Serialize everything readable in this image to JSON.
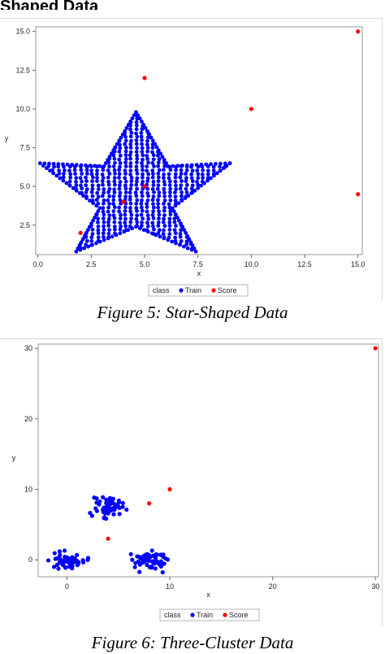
{
  "page": {
    "top_heading": "Shaped Data"
  },
  "figures": [
    {
      "caption": "Figure 5: Star-Shaped Data",
      "legend": {
        "title": "class",
        "entries": [
          {
            "label": "Train",
            "color": "#0000ff"
          },
          {
            "label": "Score",
            "color": "#ff0000"
          }
        ]
      }
    },
    {
      "caption": "Figure 6: Three-Cluster Data",
      "legend": {
        "title": "class",
        "entries": [
          {
            "label": "Train",
            "color": "#0000ff"
          },
          {
            "label": "Score",
            "color": "#ff0000"
          }
        ]
      }
    }
  ],
  "chart_data": [
    {
      "type": "scatter",
      "xlabel": "x",
      "ylabel": "y",
      "xlim": [
        -0.1,
        15.2
      ],
      "ylim": [
        0.6,
        15.3
      ],
      "xticks": [
        "0.0",
        "2.5",
        "5.0",
        "7.5",
        "10.0",
        "12.5",
        "15.0"
      ],
      "yticks": [
        "2.5",
        "5.0",
        "7.5",
        "10.0",
        "12.5",
        "15.0"
      ],
      "grid": false,
      "legend_position": "bottom",
      "series": [
        {
          "name": "Train",
          "color": "#0000ff",
          "shape": "star",
          "star": {
            "top": [
              4.6,
              9.8
            ],
            "left": [
              0.1,
              6.5
            ],
            "right": [
              9.0,
              6.5
            ],
            "bottom_left": [
              1.8,
              0.8
            ],
            "bottom_right": [
              7.4,
              0.8
            ],
            "inner_left": [
              3.1,
              6.3
            ],
            "inner_right": [
              6.1,
              6.3
            ],
            "inner_bottom_left": [
              2.9,
              3.6
            ],
            "inner_bottom_right": [
              6.3,
              3.6
            ],
            "inner_bottom": [
              4.6,
              2.4
            ]
          }
        },
        {
          "name": "Score",
          "color": "#ff0000",
          "points": [
            [
              15.0,
              15.0
            ],
            [
              5.0,
              12.0
            ],
            [
              10.0,
              10.0
            ],
            [
              15.0,
              4.5
            ],
            [
              5.0,
              5.0
            ],
            [
              4.0,
              4.0
            ],
            [
              2.0,
              2.0
            ]
          ]
        }
      ]
    },
    {
      "type": "scatter",
      "xlabel": "x",
      "ylabel": "y",
      "xlim": [
        -2.8,
        30.3
      ],
      "ylim": [
        -2.4,
        30.6
      ],
      "xticks": [
        "0",
        "10",
        "20",
        "30"
      ],
      "yticks": [
        "0",
        "10",
        "20",
        "30"
      ],
      "grid": false,
      "legend_position": "bottom",
      "series": [
        {
          "name": "Train",
          "color": "#0000ff",
          "clusters": [
            {
              "center": [
                0.0,
                0.0
              ],
              "spread": [
                1.3,
                0.9
              ],
              "count": 55
            },
            {
              "center": [
                4.0,
                7.5
              ],
              "spread": [
                1.2,
                1.3
              ],
              "count": 55
            },
            {
              "center": [
                8.0,
                0.0
              ],
              "spread": [
                1.4,
                1.1
              ],
              "count": 60
            }
          ]
        },
        {
          "name": "Score",
          "color": "#ff0000",
          "points": [
            [
              30.0,
              30.0
            ],
            [
              10.0,
              10.0
            ],
            [
              8.0,
              8.0
            ],
            [
              4.0,
              3.0
            ]
          ]
        }
      ]
    }
  ]
}
